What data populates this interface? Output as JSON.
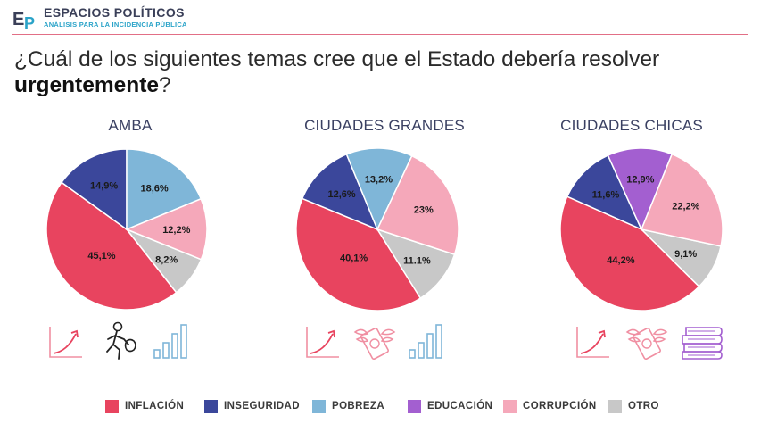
{
  "header": {
    "brand": "ESPACIOS POLÍTICOS",
    "tagline": "ANÁLISIS PARA LA INCIDENCIA PÚBLICA",
    "logo_letters": "EP"
  },
  "question": {
    "prefix": "¿Cuál de los siguientes temas cree que el Estado debería resolver ",
    "emphasis": "urgentemente",
    "suffix": "?"
  },
  "colors": {
    "inflacion": "#e8445f",
    "inseguridad": "#3b479b",
    "pobreza": "#7fb6d8",
    "educacion": "#a35fd0",
    "corrupcion": "#f5a8ba",
    "otro": "#c8c8c8"
  },
  "chart_data": [
    {
      "type": "pie",
      "title": "AMBA",
      "slices": [
        {
          "category": "OTRO",
          "value": 8.2,
          "label": "8,2%"
        },
        {
          "category": "INFLACIÓN",
          "value": 45.1,
          "label": "45,1%"
        },
        {
          "category": "INSEGURIDAD",
          "value": 14.9,
          "label": "14,9%"
        },
        {
          "category": "POBREZA",
          "value": 18.6,
          "label": "18,6%"
        },
        {
          "category": "CORRUPCIÓN",
          "value": 12.2,
          "label": "12,2%"
        }
      ],
      "icons": [
        "inflation-chart-icon",
        "thief-running-icon",
        "poverty-bars-icon"
      ]
    },
    {
      "type": "pie",
      "title": "CIUDADES GRANDES",
      "slices": [
        {
          "category": "OTRO",
          "value": 11.1,
          "label": "11.1%"
        },
        {
          "category": "INFLACIÓN",
          "value": 40.1,
          "label": "40,1%"
        },
        {
          "category": "INSEGURIDAD",
          "value": 12.6,
          "label": "12,6%"
        },
        {
          "category": "POBREZA",
          "value": 13.2,
          "label": "13,2%"
        },
        {
          "category": "CORRUPCIÓN",
          "value": 23,
          "label": "23%"
        }
      ],
      "icons": [
        "inflation-chart-icon",
        "flying-money-icon",
        "poverty-bars-icon"
      ]
    },
    {
      "type": "pie",
      "title": "CIUDADES CHICAS",
      "slices": [
        {
          "category": "OTRO",
          "value": 9.1,
          "label": "9,1%"
        },
        {
          "category": "INFLACIÓN",
          "value": 44.2,
          "label": "44,2%"
        },
        {
          "category": "INSEGURIDAD",
          "value": 11.6,
          "label": "11,6%"
        },
        {
          "category": "EDUCACIÓN",
          "value": 12.9,
          "label": "12,9%"
        },
        {
          "category": "CORRUPCIÓN",
          "value": 22.2,
          "label": "22,2%"
        }
      ],
      "icons": [
        "inflation-chart-icon",
        "flying-money-icon",
        "books-stack-icon"
      ]
    }
  ],
  "legend": [
    {
      "label": "INFLACIÓN",
      "color": "#e8445f"
    },
    {
      "label": "INSEGURIDAD",
      "color": "#3b479b"
    },
    {
      "label": "POBREZA",
      "color": "#7fb6d8"
    },
    {
      "label": "EDUCACIÓN",
      "color": "#a35fd0"
    },
    {
      "label": "CORRUPCIÓN",
      "color": "#f5a8ba"
    },
    {
      "label": "OTRO",
      "color": "#c8c8c8"
    }
  ]
}
